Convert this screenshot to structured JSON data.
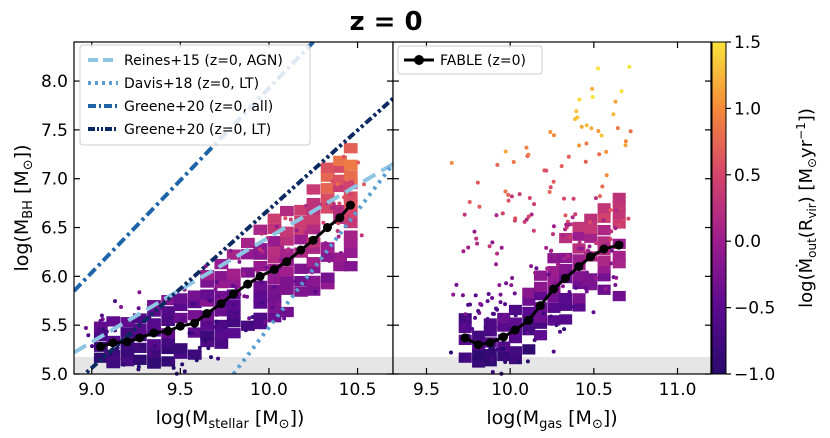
{
  "title": "z = 0",
  "colors": {
    "reines": "#8ec5e3",
    "davis": "#5a9fd1",
    "greene_all": "#1f64a8",
    "greene_lt": "#0b2a61",
    "fable": "#000000",
    "shade": "#e6e6e6"
  },
  "chart_data": [
    {
      "type": "heatmap",
      "panel": "left",
      "xlabel": "log(M_stellar [M_⊙])",
      "ylabel": "log(M_BH [M_⊙])",
      "xlim": [
        8.9,
        10.7
      ],
      "ylim": [
        5.0,
        8.4
      ],
      "xticks": [
        "9.0",
        "9.5",
        "10.0",
        "10.5"
      ],
      "yticks": [
        "5.0",
        "5.5",
        "6.0",
        "6.5",
        "7.0",
        "7.5",
        "8.0"
      ],
      "shaded_band": [
        5.0,
        5.17
      ],
      "legend": {
        "position": "top-left",
        "entries": [
          "Reines+15 (z=0, AGN)",
          "Davis+18 (z=0, LT)",
          "Greene+20 (z=0, all)",
          "Greene+20 (z=0, LT)"
        ]
      },
      "series": [
        {
          "name": "Reines+15 (z=0, AGN)",
          "style": "dashed",
          "x": [
            8.9,
            10.7
          ],
          "y": [
            5.22,
            7.15
          ]
        },
        {
          "name": "Davis+18 (z=0, LT)",
          "style": "dotted",
          "x": [
            9.8,
            10.7
          ],
          "y": [
            5.0,
            7.15
          ]
        },
        {
          "name": "Greene+20 (z=0, all)",
          "style": "dashdot",
          "x": [
            8.9,
            10.25
          ],
          "y": [
            5.85,
            8.4
          ]
        },
        {
          "name": "Greene+20 (z=0, LT)",
          "style": "dashdotdot",
          "x": [
            8.9,
            10.7
          ],
          "y": [
            4.9,
            7.82
          ]
        },
        {
          "name": "FABLE (z=0)",
          "style": "line-marker",
          "x": [
            9.05,
            9.12,
            9.2,
            9.27,
            9.35,
            9.43,
            9.5,
            9.58,
            9.65,
            9.73,
            9.8,
            9.88,
            9.95,
            10.03,
            10.1,
            10.18,
            10.25,
            10.33,
            10.4,
            10.46
          ],
          "y": [
            5.28,
            5.32,
            5.33,
            5.37,
            5.42,
            5.44,
            5.49,
            5.52,
            5.62,
            5.72,
            5.82,
            5.92,
            6.0,
            6.07,
            6.15,
            6.27,
            6.37,
            6.5,
            6.6,
            6.73
          ]
        }
      ],
      "binned_colormap_values": [
        {
          "x": 9.1,
          "y": 5.3,
          "z": -0.5
        },
        {
          "x": 9.2,
          "y": 5.3,
          "z": -0.4
        },
        {
          "x": 9.3,
          "y": 5.3,
          "z": -0.5
        },
        {
          "x": 9.4,
          "y": 5.3,
          "z": -0.3
        },
        {
          "x": 9.5,
          "y": 5.3,
          "z": -0.4
        },
        {
          "x": 9.6,
          "y": 5.3,
          "z": -0.5
        },
        {
          "x": 9.7,
          "y": 5.3,
          "z": -0.6
        },
        {
          "x": 9.8,
          "y": 5.3,
          "z": -0.3
        },
        {
          "x": 9.5,
          "y": 5.5,
          "z": -0.2
        },
        {
          "x": 9.7,
          "y": 5.5,
          "z": -0.5
        },
        {
          "x": 9.9,
          "y": 5.7,
          "z": -0.3
        },
        {
          "x": 10.0,
          "y": 5.9,
          "z": -0.1
        },
        {
          "x": 10.1,
          "y": 6.1,
          "z": 0.1
        },
        {
          "x": 10.2,
          "y": 6.3,
          "z": 0.2
        },
        {
          "x": 10.3,
          "y": 6.5,
          "z": 0.3
        },
        {
          "x": 10.4,
          "y": 6.7,
          "z": 0.5
        },
        {
          "x": 10.45,
          "y": 7.1,
          "z": 0.8
        }
      ]
    },
    {
      "type": "heatmap",
      "panel": "right",
      "xlabel": "log(M_gas [M_⊙])",
      "xlim": [
        9.3,
        11.2
      ],
      "ylim": [
        5.0,
        8.4
      ],
      "xticks": [
        "9.5",
        "10.0",
        "10.5",
        "11.0"
      ],
      "shaded_band": [
        5.0,
        5.17
      ],
      "legend": {
        "position": "top-left",
        "entries": [
          "FABLE (z=0)"
        ]
      },
      "series": [
        {
          "name": "FABLE (z=0)",
          "style": "line-marker",
          "x": [
            9.73,
            9.81,
            9.88,
            9.96,
            10.03,
            10.11,
            10.18,
            10.26,
            10.33,
            10.41,
            10.48,
            10.56,
            10.65
          ],
          "y": [
            5.37,
            5.3,
            5.32,
            5.38,
            5.45,
            5.55,
            5.7,
            5.87,
            5.98,
            6.1,
            6.2,
            6.28,
            6.32
          ]
        }
      ],
      "binned_colormap_values": [
        {
          "x": 9.85,
          "y": 5.3,
          "z": -0.6
        },
        {
          "x": 10.0,
          "y": 5.5,
          "z": -0.4
        },
        {
          "x": 10.1,
          "y": 5.9,
          "z": -0.2
        },
        {
          "x": 10.25,
          "y": 6.1,
          "z": 0.1
        },
        {
          "x": 10.35,
          "y": 6.4,
          "z": 0.3
        },
        {
          "x": 10.45,
          "y": 6.6,
          "z": 0.5
        },
        {
          "x": 10.55,
          "y": 6.75,
          "z": 0.6
        }
      ]
    },
    {
      "type": "colorbar",
      "label": "log(Ṁ_out(R_vir) [M_⊙yr⁻¹])",
      "range": [
        -1.0,
        1.5
      ],
      "ticks": [
        "−1.0",
        "−0.5",
        "0.0",
        "0.5",
        "1.0",
        "1.5"
      ],
      "colormap": "plasma"
    }
  ]
}
